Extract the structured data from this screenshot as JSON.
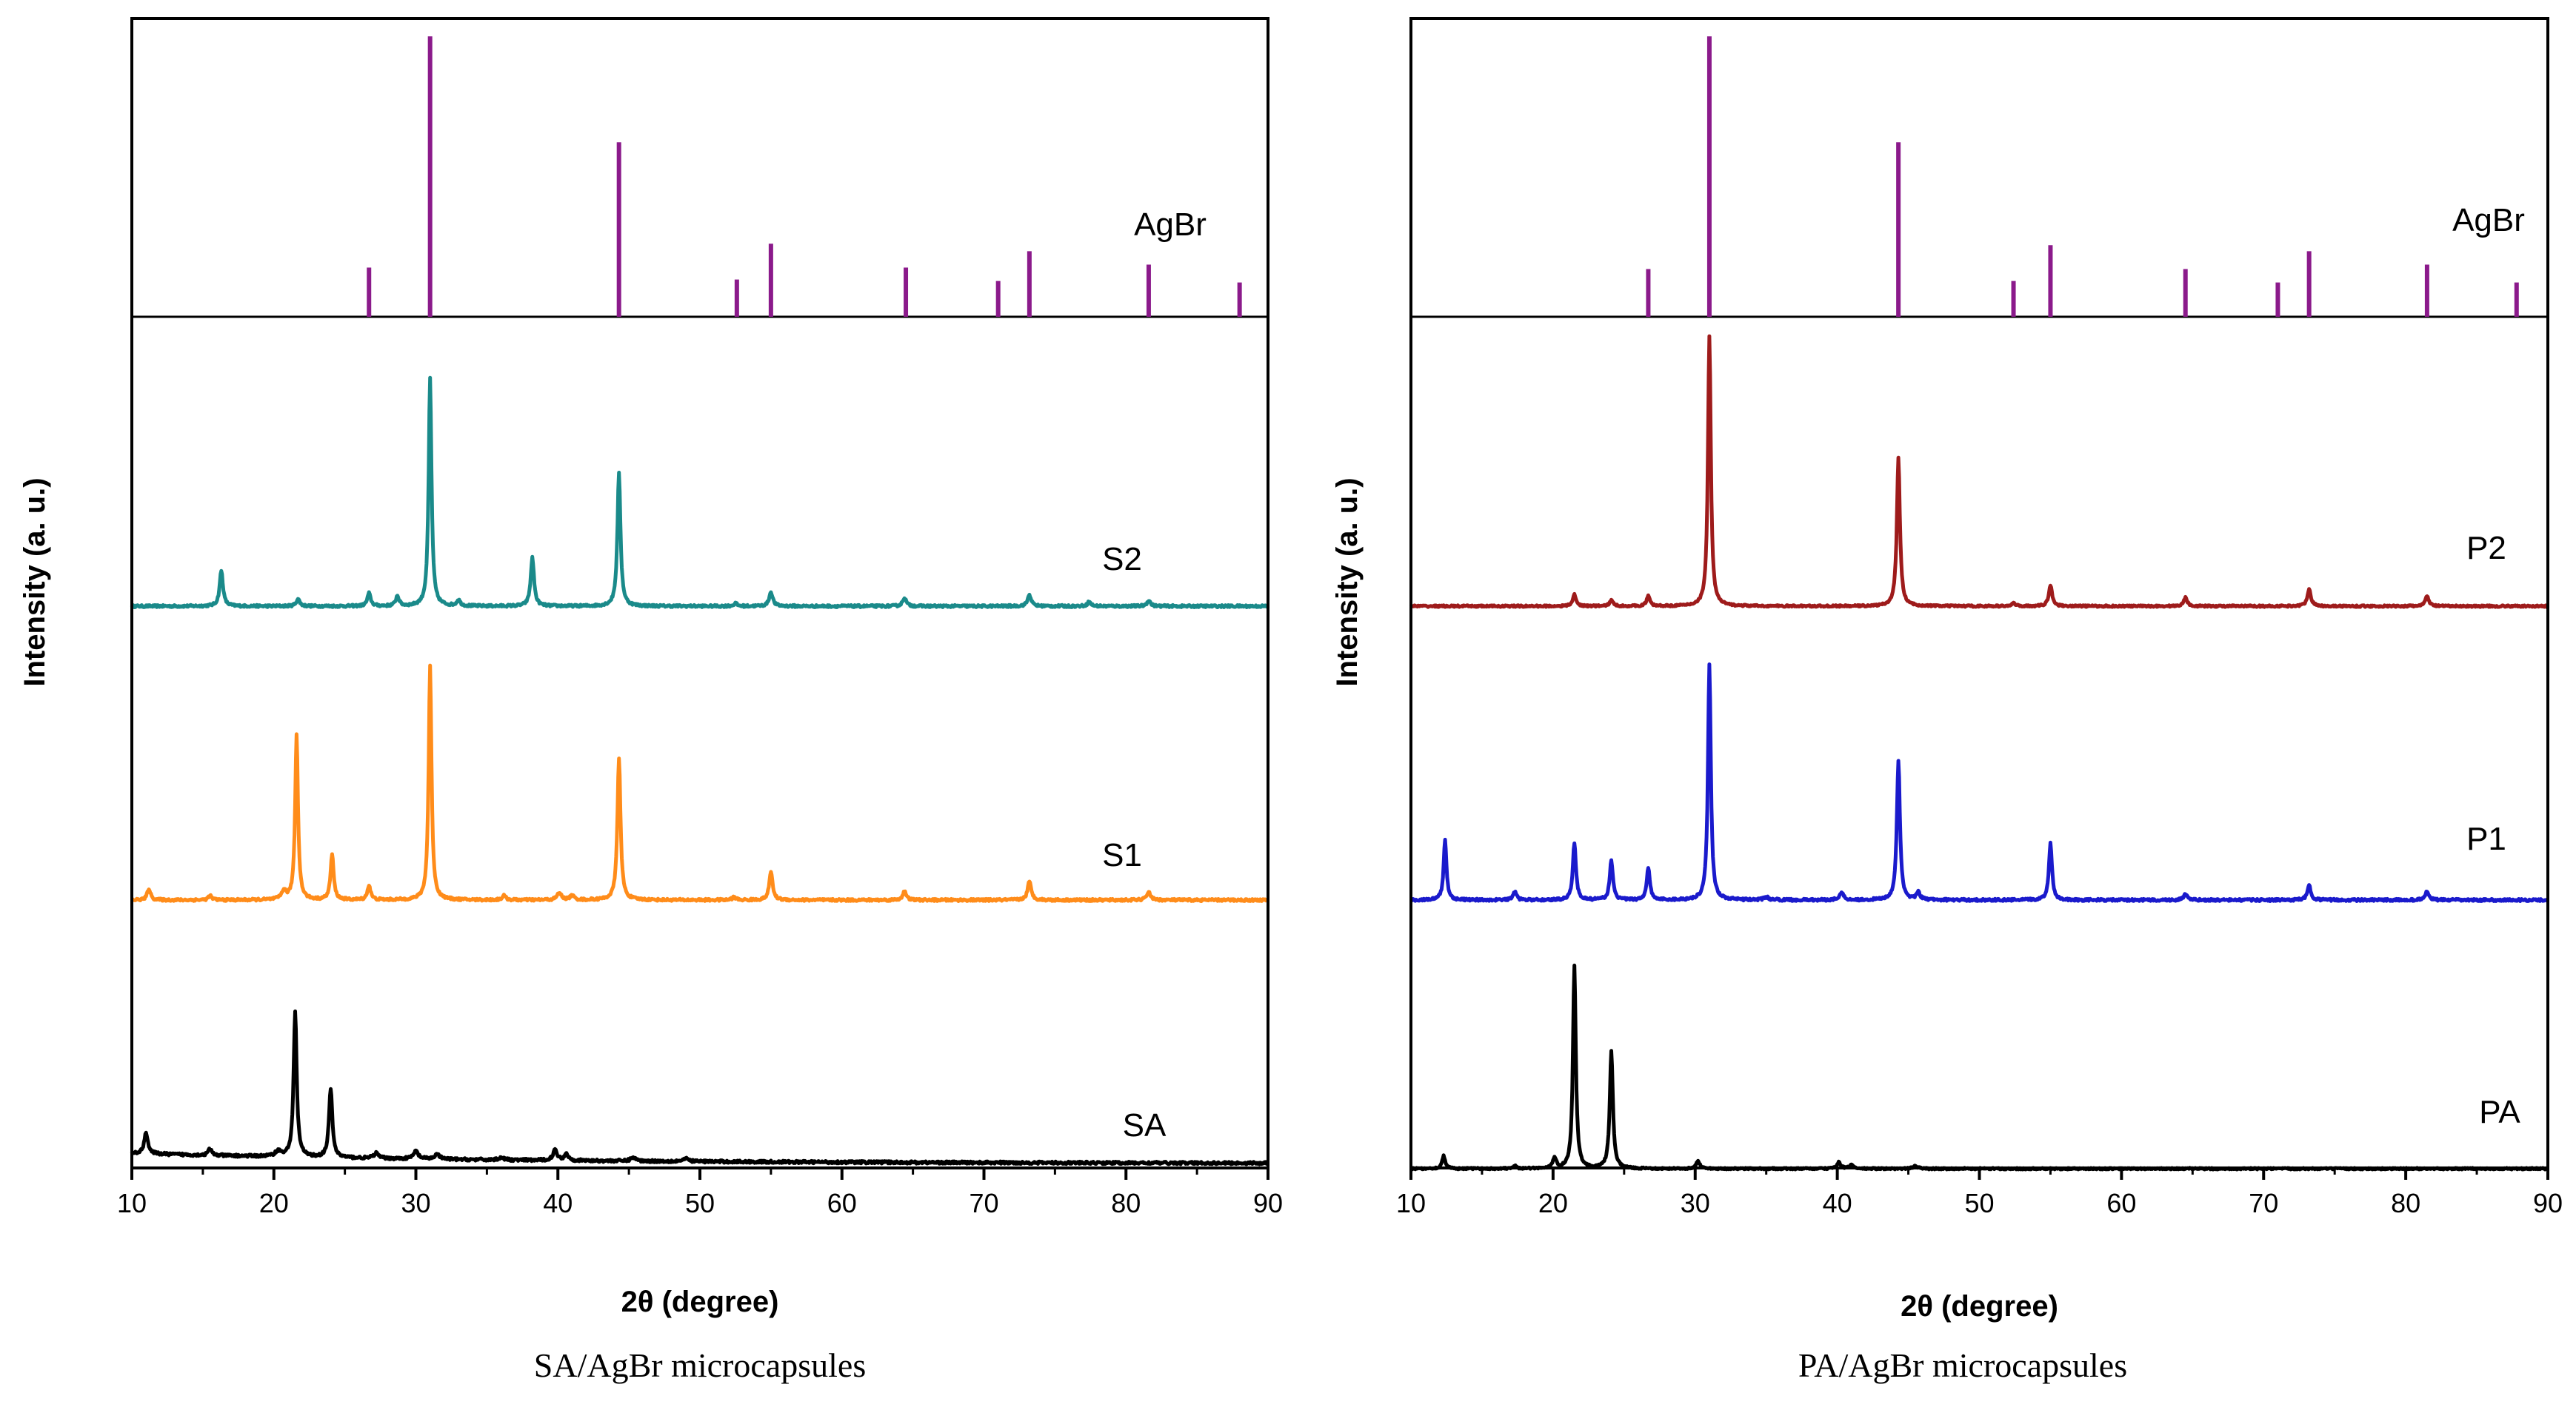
{
  "chart_data": [
    {
      "type": "line",
      "caption": "SA/AgBr microcapsules",
      "xlabel": "2θ (degree)",
      "ylabel": "Intensity (a. u.)",
      "xlim": [
        10,
        90
      ],
      "xticks": [
        10,
        20,
        30,
        40,
        50,
        60,
        70,
        80,
        90
      ],
      "yticks": false,
      "reference": {
        "name": "AgBr",
        "color": "#8b1a8b",
        "lines": [
          [
            26.7,
            0.165
          ],
          [
            31.0,
            0.94
          ],
          [
            44.3,
            0.585
          ],
          [
            52.6,
            0.125
          ],
          [
            55.0,
            0.245
          ],
          [
            64.5,
            0.165
          ],
          [
            71.0,
            0.12
          ],
          [
            73.2,
            0.22
          ],
          [
            81.6,
            0.175
          ],
          [
            88.0,
            0.115
          ]
        ]
      },
      "series": [
        {
          "name": "S2",
          "color": "#1a8a8a",
          "baseline_level": 0.0,
          "noise": 0.004,
          "drift": 0.0,
          "peaks": [
            [
              16.3,
              0.125,
              0.14
            ],
            [
              21.7,
              0.025,
              0.15
            ],
            [
              26.7,
              0.045,
              0.14
            ],
            [
              28.7,
              0.035,
              0.14
            ],
            [
              31.0,
              0.8,
              0.12
            ],
            [
              33.0,
              0.02,
              0.15
            ],
            [
              38.2,
              0.17,
              0.14
            ],
            [
              44.3,
              0.465,
              0.13
            ],
            [
              52.5,
              0.01,
              0.14
            ],
            [
              55.0,
              0.05,
              0.15
            ],
            [
              64.4,
              0.03,
              0.15
            ],
            [
              73.2,
              0.04,
              0.15
            ],
            [
              77.4,
              0.015,
              0.15
            ],
            [
              81.6,
              0.02,
              0.15
            ]
          ]
        },
        {
          "name": "S1",
          "color": "#ff8c1a",
          "baseline_level": 0.0,
          "noise": 0.004,
          "drift": 0.0,
          "peaks": [
            [
              11.2,
              0.04,
              0.14
            ],
            [
              15.5,
              0.015,
              0.14
            ],
            [
              20.7,
              0.03,
              0.18
            ],
            [
              21.6,
              0.58,
              0.12
            ],
            [
              24.1,
              0.16,
              0.13
            ],
            [
              26.7,
              0.05,
              0.14
            ],
            [
              31.0,
              0.82,
              0.12
            ],
            [
              36.2,
              0.015,
              0.15
            ],
            [
              40.1,
              0.025,
              0.18
            ],
            [
              41.0,
              0.015,
              0.18
            ],
            [
              44.3,
              0.5,
              0.13
            ],
            [
              52.4,
              0.01,
              0.15
            ],
            [
              55.0,
              0.1,
              0.14
            ],
            [
              64.4,
              0.03,
              0.15
            ],
            [
              73.2,
              0.065,
              0.15
            ],
            [
              81.6,
              0.03,
              0.15
            ]
          ]
        },
        {
          "name": "SA",
          "color": "#000000",
          "baseline_level": 0.0,
          "noise": 0.005,
          "drift": 0.04,
          "peaks": [
            [
              11.0,
              0.085,
              0.15
            ],
            [
              15.5,
              0.025,
              0.15
            ],
            [
              20.3,
              0.02,
              0.25
            ],
            [
              21.5,
              0.57,
              0.13
            ],
            [
              24.0,
              0.27,
              0.14
            ],
            [
              27.2,
              0.02,
              0.2
            ],
            [
              30.0,
              0.03,
              0.2
            ],
            [
              31.5,
              0.02,
              0.2
            ],
            [
              36.0,
              0.01,
              0.2
            ],
            [
              39.8,
              0.04,
              0.18
            ],
            [
              40.6,
              0.025,
              0.18
            ],
            [
              45.3,
              0.015,
              0.2
            ],
            [
              49.0,
              0.01,
              0.25
            ]
          ]
        }
      ],
      "series_labels": {
        "AgBr": "AgBr",
        "S2": "S2",
        "S1": "S1",
        "SA": "SA"
      }
    },
    {
      "type": "line",
      "caption": "PA/AgBr microcapsules",
      "xlabel": "2θ (degree)",
      "ylabel": "Intensity (a. u.)",
      "xlim": [
        10,
        90
      ],
      "xticks": [
        10,
        20,
        30,
        40,
        50,
        60,
        70,
        80,
        90
      ],
      "yticks": false,
      "reference": {
        "name": "AgBr",
        "color": "#8b1a8b",
        "lines": [
          [
            26.7,
            0.16
          ],
          [
            31.0,
            0.94
          ],
          [
            44.3,
            0.585
          ],
          [
            52.4,
            0.12
          ],
          [
            55.0,
            0.24
          ],
          [
            64.5,
            0.16
          ],
          [
            71.0,
            0.115
          ],
          [
            73.2,
            0.22
          ],
          [
            81.5,
            0.175
          ],
          [
            87.8,
            0.115
          ]
        ]
      },
      "series": [
        {
          "name": "P2",
          "color": "#9e1b1b",
          "baseline_level": 0.0,
          "noise": 0.003,
          "drift": 0.0,
          "peaks": [
            [
              21.5,
              0.04,
              0.14
            ],
            [
              24.1,
              0.02,
              0.15
            ],
            [
              26.7,
              0.035,
              0.14
            ],
            [
              31.0,
              0.95,
              0.12
            ],
            [
              44.3,
              0.52,
              0.13
            ],
            [
              52.4,
              0.01,
              0.15
            ],
            [
              55.0,
              0.075,
              0.14
            ],
            [
              64.5,
              0.03,
              0.15
            ],
            [
              73.2,
              0.06,
              0.15
            ],
            [
              81.5,
              0.035,
              0.15
            ]
          ]
        },
        {
          "name": "P1",
          "color": "#1a1acc",
          "baseline_level": 0.0,
          "noise": 0.004,
          "drift": 0.0,
          "peaks": [
            [
              12.4,
              0.21,
              0.12
            ],
            [
              17.3,
              0.03,
              0.14
            ],
            [
              21.5,
              0.2,
              0.13
            ],
            [
              24.1,
              0.14,
              0.13
            ],
            [
              26.7,
              0.115,
              0.13
            ],
            [
              31.0,
              0.83,
              0.12
            ],
            [
              35.0,
              0.01,
              0.2
            ],
            [
              40.3,
              0.025,
              0.18
            ],
            [
              44.3,
              0.49,
              0.13
            ],
            [
              45.7,
              0.025,
              0.15
            ],
            [
              55.0,
              0.2,
              0.13
            ],
            [
              64.5,
              0.02,
              0.15
            ],
            [
              73.2,
              0.05,
              0.15
            ],
            [
              81.5,
              0.03,
              0.15
            ]
          ]
        },
        {
          "name": "PA",
          "color": "#000000",
          "baseline_level": 0.0,
          "noise": 0.003,
          "drift": 0.0,
          "peaks": [
            [
              12.3,
              0.05,
              0.13
            ],
            [
              17.3,
              0.01,
              0.15
            ],
            [
              20.1,
              0.04,
              0.15
            ],
            [
              21.5,
              0.78,
              0.12
            ],
            [
              24.1,
              0.45,
              0.13
            ],
            [
              30.2,
              0.03,
              0.15
            ],
            [
              40.1,
              0.025,
              0.16
            ],
            [
              41.0,
              0.015,
              0.16
            ],
            [
              45.5,
              0.01,
              0.2
            ]
          ]
        }
      ],
      "series_labels": {
        "AgBr": "AgBr",
        "P2": "P2",
        "P1": "P1",
        "PA": "PA"
      }
    }
  ]
}
